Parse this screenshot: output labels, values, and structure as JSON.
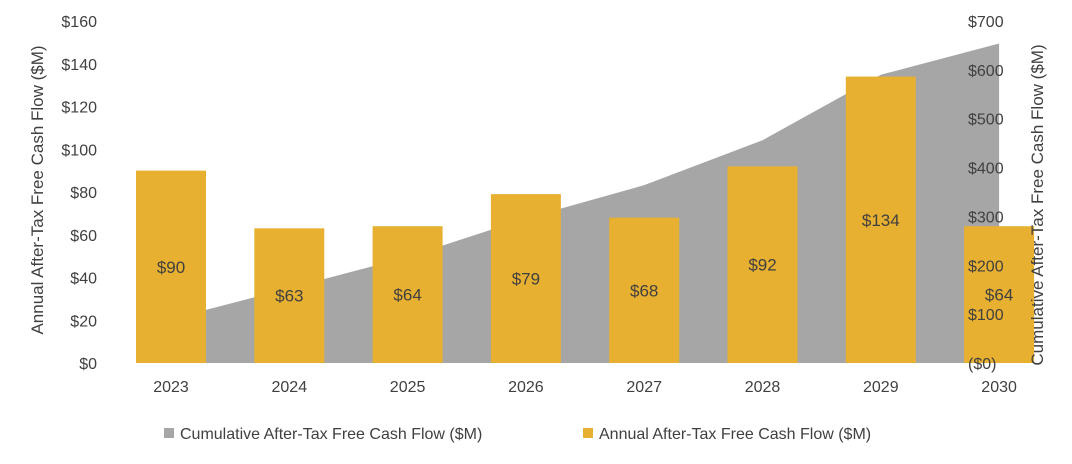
{
  "chart_data": {
    "type": "bar",
    "categories": [
      "2023",
      "2024",
      "2025",
      "2026",
      "2027",
      "2028",
      "2029",
      "2030"
    ],
    "series": [
      {
        "name": "Cumulative After-Tax Free Cash Flow ($M)",
        "type": "area",
        "axis": "right",
        "color": "#a6a6a6",
        "values": [
          90,
          153,
          217,
          296,
          364,
          456,
          590,
          654
        ]
      },
      {
        "name": "Annual After-Tax Free Cash Flow ($M)",
        "type": "bar",
        "axis": "left",
        "color": "#e8b030",
        "values": [
          90,
          63,
          64,
          79,
          68,
          92,
          134,
          64
        ],
        "labels": [
          "$90",
          "$63",
          "$64",
          "$79",
          "$68",
          "$92",
          "$134",
          "$64"
        ]
      }
    ],
    "ylabel_left": "Annual After-Tax Free Cash Flow ($M)",
    "ylabel_right": "Cumulative After-Tax Free Cash Flow ($M)",
    "ylim_left": [
      0,
      160
    ],
    "ylim_right": [
      0,
      700
    ],
    "yticks_left": [
      "$0",
      "$20",
      "$40",
      "$60",
      "$80",
      "$100",
      "$120",
      "$140",
      "$160"
    ],
    "yticks_right": [
      "($0)",
      "$100",
      "$200",
      "$300",
      "$400",
      "$500",
      "$600",
      "$700"
    ],
    "grid": false,
    "legend_position": "bottom"
  }
}
